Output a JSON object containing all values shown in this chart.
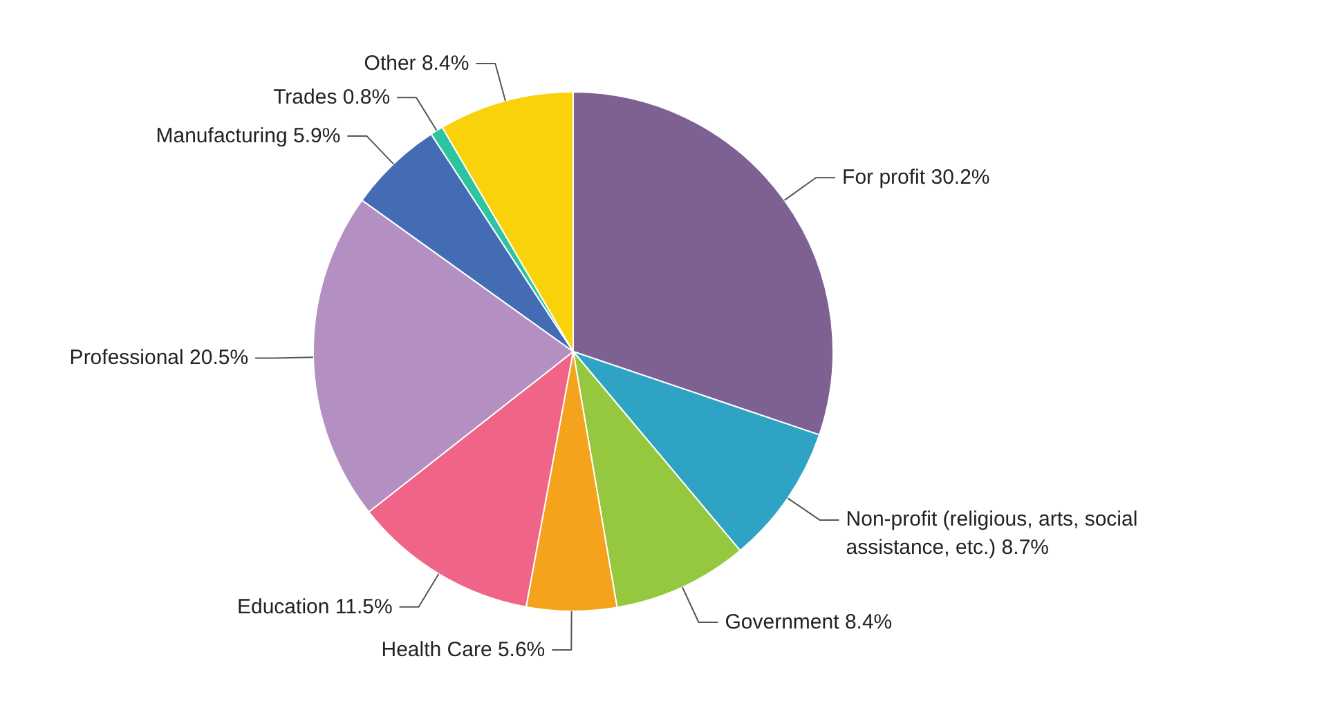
{
  "chart_data": {
    "type": "pie",
    "categories": [
      "For profit",
      "Non-profit (religious, arts, social assistance, etc.)",
      "Government",
      "Health Care",
      "Education",
      "Professional",
      "Manufacturing",
      "Trades",
      "Other"
    ],
    "values": [
      30.2,
      8.7,
      8.4,
      5.6,
      11.5,
      20.5,
      5.9,
      0.8,
      8.4
    ],
    "colors": [
      "#7e6193",
      "#2fa3c4",
      "#95c83e",
      "#f5a21d",
      "#f06488",
      "#b38fc2",
      "#436cb5",
      "#2ec4a0",
      "#f9d20b"
    ],
    "value_labels": [
      "30.2%",
      "8.7%",
      "8.4%",
      "5.6%",
      "11.5%",
      "20.5%",
      "5.9%",
      "0.8%",
      "8.4%"
    ]
  }
}
